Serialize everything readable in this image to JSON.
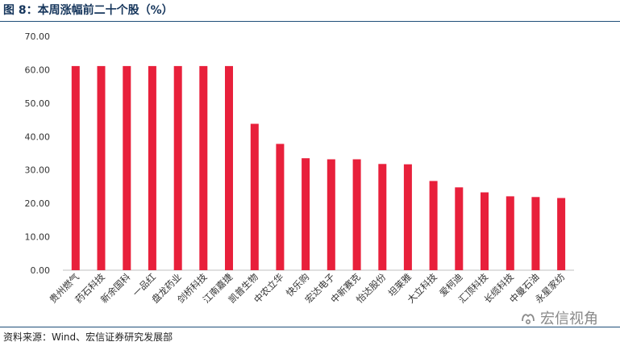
{
  "header": {
    "title": "图 8：本周涨幅前二十个股（%）"
  },
  "footer": {
    "source": "资料来源：Wind、宏信证券研究发展部"
  },
  "watermark": {
    "text": "宏信视角",
    "icon": "wechat-channel-icon"
  },
  "colors": {
    "bar": "#e8203b",
    "axis": "#bfbfbf",
    "rule": "#1f4e79",
    "title": "#16365c"
  },
  "chart_data": {
    "type": "bar",
    "title": "图 8：本周涨幅前二十个股（%）",
    "xlabel": "",
    "ylabel": "",
    "ylim": [
      0,
      70
    ],
    "y_ticks": [
      "0.00",
      "10.00",
      "20.00",
      "30.00",
      "40.00",
      "50.00",
      "60.00",
      "70.00"
    ],
    "grid": false,
    "legend": "none",
    "categories": [
      "贵州燃气",
      "药石科技",
      "新余国科",
      "一品红",
      "盘龙药业",
      "剑桥科技",
      "江南嘉捷",
      "凯普生物",
      "中农立华",
      "快乐购",
      "宏达电子",
      "中新赛克",
      "怡达股份",
      "坦莱雅",
      "大立科技",
      "爱柯迪",
      "汇顶科技",
      "长缆科技",
      "中曼石油",
      "永星家纺"
    ],
    "values": [
      61.1,
      61.1,
      61.1,
      61.1,
      61.1,
      61.1,
      61.1,
      43.8,
      37.8,
      33.5,
      33.2,
      33.2,
      31.8,
      31.7,
      26.7,
      24.8,
      23.3,
      22.1,
      21.9,
      21.6
    ]
  }
}
